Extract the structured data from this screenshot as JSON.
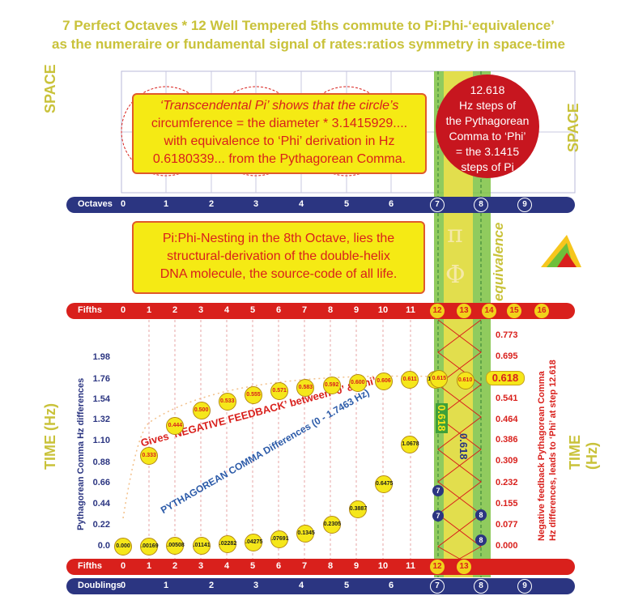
{
  "title_line1": "7 Perfect Octaves * 12 Well Tempered 5ths commute to Pi:Phi-‘equivalence’",
  "title_line2": "as the numeraire or fundamental signal of rates:ratios symmetry in space-time",
  "side": {
    "space_left": "SPACE",
    "space_right": "SPACE",
    "time_left": "TIME (Hz)",
    "time_right": "TIME (Hz)"
  },
  "box_pi": {
    "line1": "‘Transcendental Pi’ shows that the circle’s",
    "line2": "circumference = the diameter * 3.1415929....",
    "line3": "with equivalence to ‘Phi’ derivation in Hz",
    "line4": "0.6180339... from the Pythagorean Comma."
  },
  "red_circle": {
    "line1": "12.618",
    "line2": "Hz steps of",
    "line3": "the Pythagorean",
    "line4": "Comma to ‘Phi’",
    "line5": "= the 3.1415",
    "line6": "steps of Pi"
  },
  "box_dna": {
    "line1": "Pi:Phi-Nesting in the 8th Octave, lies the",
    "line2": "structural-derivation of the double-helix",
    "line3": "DNA molecule, the source-code of all life."
  },
  "octaves_bar": {
    "label": "Octaves",
    "numbers": [
      "0",
      "1",
      "2",
      "3",
      "4",
      "5",
      "6"
    ],
    "circled": [
      "7",
      "8",
      "9"
    ]
  },
  "fifths_bar_top": {
    "label": "Fifths",
    "numbers": [
      "0",
      "1",
      "2",
      "3",
      "4",
      "5",
      "6",
      "7",
      "8",
      "9",
      "10",
      "11"
    ],
    "circled": [
      "12",
      "13",
      "14",
      "15",
      "16"
    ]
  },
  "fifths_bar_bottom": {
    "label": "Fifths",
    "numbers": [
      "0",
      "1",
      "2",
      "3",
      "4",
      "5",
      "6",
      "7",
      "8",
      "9",
      "10",
      "11"
    ],
    "circled": [
      "12",
      "13"
    ]
  },
  "doublings_bar": {
    "label": "Doublings",
    "numbers": [
      "0",
      "1",
      "2",
      "3",
      "4",
      "5",
      "6"
    ],
    "circled": [
      "7",
      "8",
      "9"
    ]
  },
  "symbols": {
    "pi": "π",
    "phi": "Φ",
    "equivalence": "equivalence"
  },
  "axis_left_title": "Pythagorean Comma Hz differences",
  "axis_right_title_line1": "Negative feedback Pythagorean Comma",
  "axis_right_title_line2": "Hz differences, leads to ‘Phi’ at step 12.618",
  "left_ticks": [
    "1.98",
    "1.76",
    "1.54",
    "1.32",
    "1.10",
    "0.88",
    "0.66",
    "0.44",
    "0.22",
    "0.0"
  ],
  "right_ticks": [
    "0.773",
    "0.695",
    "0.618",
    "0.541",
    "0.464",
    "0.386",
    "0.309",
    "0.232",
    "0.155",
    "0.077",
    "0.000"
  ],
  "right_highlight": "0.618",
  "curve_label_feedback": "Gives ‘NEGATIVE FEEDBACK’ between ‘0’ &‘Phi’",
  "curve_label_comma": "PYTHAGOREAN COMMA Differences (0 - 1.7463 Hz)",
  "band_labels": {
    "phi_a": "0.618",
    "phi_b": "0.618"
  },
  "chart_data": {
    "type": "scatter",
    "series": [
      {
        "name": "PYTHAGOREAN COMMA Differences (0 - 1.7463 Hz)",
        "x": [
          0,
          1,
          2,
          3,
          4,
          5,
          6,
          7,
          8,
          9,
          10,
          11,
          12
        ],
        "labels": [
          "0.000",
          ".00169",
          ".00508",
          ".01141",
          ".02282",
          ".04275",
          ".07691",
          "0.1345",
          "0.2305",
          "0.3887",
          "0.6475",
          "1.0678",
          "1.7463"
        ],
        "values": [
          0.0,
          0.00169,
          0.00508,
          0.01141,
          0.02282,
          0.04275,
          0.07691,
          0.1345,
          0.2305,
          0.3887,
          0.6475,
          1.0678,
          1.7463
        ]
      },
      {
        "name": "Gives ‘NEGATIVE FEEDBACK’ between ‘0’ &‘Phi’",
        "x": [
          1,
          2,
          3,
          4,
          5,
          6,
          7,
          8,
          9,
          10,
          11,
          12,
          13
        ],
        "labels": [
          "0.333",
          "0.444",
          "0.500",
          "0.533",
          "0.555",
          "0.571",
          "0.583",
          "0.592",
          "0.600",
          "0.606",
          "0.611",
          "0.615",
          "0.610"
        ],
        "values": [
          0.333,
          0.444,
          0.5,
          0.533,
          0.555,
          0.571,
          0.583,
          0.592,
          0.6,
          0.606,
          0.611,
          0.615,
          0.61
        ]
      }
    ],
    "navy_markers": [
      "7",
      "7",
      "8",
      "8"
    ]
  }
}
